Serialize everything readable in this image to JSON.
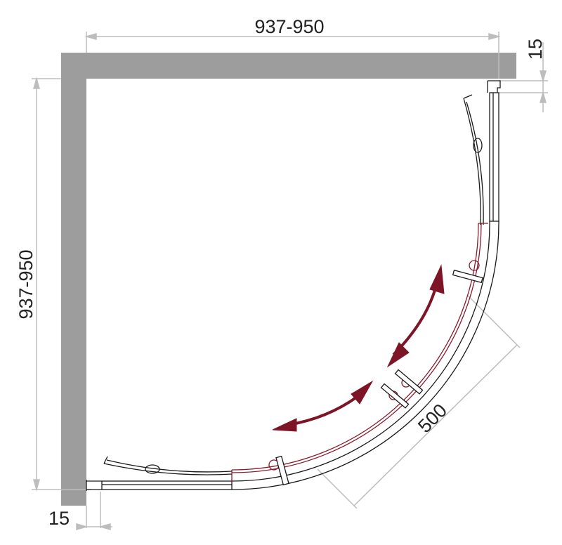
{
  "dimensions": {
    "top_width": "937-950",
    "left_depth": "937-950",
    "right_wall_offset": "15",
    "bottom_wall_offset": "15",
    "door_width": "500"
  },
  "colors": {
    "wall": "#9d9d9d",
    "dimension_line": "#bdbdbd",
    "outline": "#1a1a1a",
    "sliding_door": "#8a1a2c",
    "arrow": "#7d1526"
  }
}
